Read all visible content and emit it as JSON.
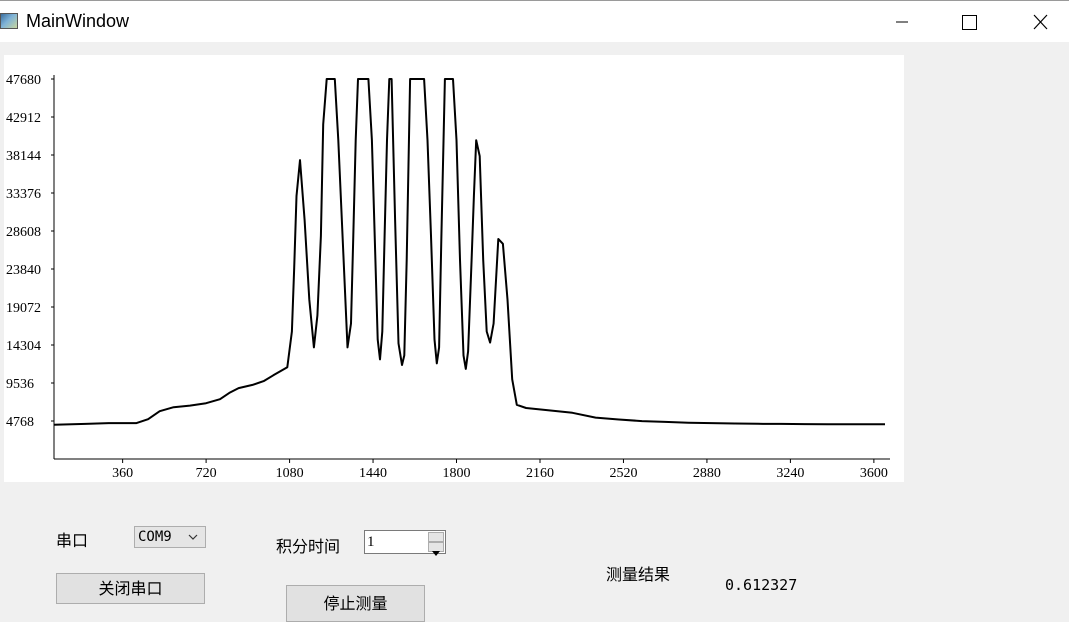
{
  "window": {
    "title": "MainWindow",
    "icons": {
      "app": "app-icon",
      "minimize": "minimize-icon",
      "maximize": "maximize-icon",
      "close": "close-icon"
    }
  },
  "controls": {
    "serial_port_label": "串口",
    "serial_port_value": "COM9",
    "close_port_label": "关闭串口",
    "integration_time_label": "积分时间",
    "integration_time_value": "1",
    "stop_measure_label": "停止测量",
    "result_label": "测量结果",
    "result_value": "0.612327"
  },
  "chart_data": {
    "type": "line",
    "xlim": [
      64,
      3648
    ],
    "ylim": [
      0,
      47680
    ],
    "x_ticks": [
      360,
      720,
      1080,
      1440,
      1800,
      2160,
      2520,
      2880,
      3240,
      3600
    ],
    "y_ticks": [
      4768,
      9536,
      14304,
      19072,
      23840,
      28608,
      33376,
      38144,
      42912,
      47680
    ],
    "grid": false,
    "color": "#000000",
    "series": [
      {
        "x": [
          64,
          200,
          300,
          370,
          420,
          470,
          520,
          580,
          650,
          720,
          780,
          820,
          860,
          920,
          970,
          1010,
          1040,
          1070,
          1090,
          1100,
          1110,
          1125,
          1145,
          1165,
          1185,
          1200,
          1215,
          1225,
          1240,
          1255,
          1265,
          1275,
          1290,
          1330,
          1345,
          1355,
          1365,
          1375,
          1385,
          1395,
          1420,
          1435,
          1450,
          1460,
          1470,
          1480,
          1490,
          1500,
          1510,
          1520,
          1535,
          1550,
          1565,
          1575,
          1585,
          1600,
          1660,
          1675,
          1690,
          1705,
          1715,
          1725,
          1735,
          1750,
          1785,
          1800,
          1815,
          1830,
          1840,
          1850,
          1865,
          1875,
          1885,
          1900,
          1915,
          1930,
          1945,
          1960,
          1980,
          2000,
          2020,
          2040,
          2060,
          2100,
          2200,
          2300,
          2400,
          2500,
          2600,
          2700,
          2800,
          2900,
          3000,
          3100,
          3200,
          3300,
          3400,
          3500,
          3600,
          3648
        ],
        "y": [
          4300,
          4400,
          4500,
          4500,
          4500,
          5000,
          6000,
          6500,
          6700,
          7000,
          7500,
          8300,
          8900,
          9300,
          9800,
          10500,
          11000,
          11500,
          16000,
          24000,
          33000,
          37500,
          30000,
          20000,
          14000,
          18000,
          28000,
          42000,
          47680,
          47680,
          47680,
          47680,
          40000,
          14000,
          17000,
          28000,
          40000,
          47680,
          47680,
          47680,
          47680,
          40000,
          25000,
          15000,
          12500,
          16000,
          28000,
          40000,
          47680,
          47680,
          30000,
          14500,
          11800,
          13000,
          25000,
          47680,
          47680,
          40000,
          28000,
          15000,
          12000,
          14000,
          28000,
          47680,
          47680,
          40000,
          25000,
          13000,
          11300,
          13500,
          25000,
          33000,
          40000,
          38000,
          25000,
          16000,
          14600,
          17000,
          27600,
          27000,
          20000,
          10000,
          6800,
          6400,
          6100,
          5800,
          5200,
          4950,
          4750,
          4650,
          4550,
          4500,
          4450,
          4420,
          4400,
          4380,
          4360,
          4350,
          4350,
          4350
        ]
      }
    ]
  }
}
